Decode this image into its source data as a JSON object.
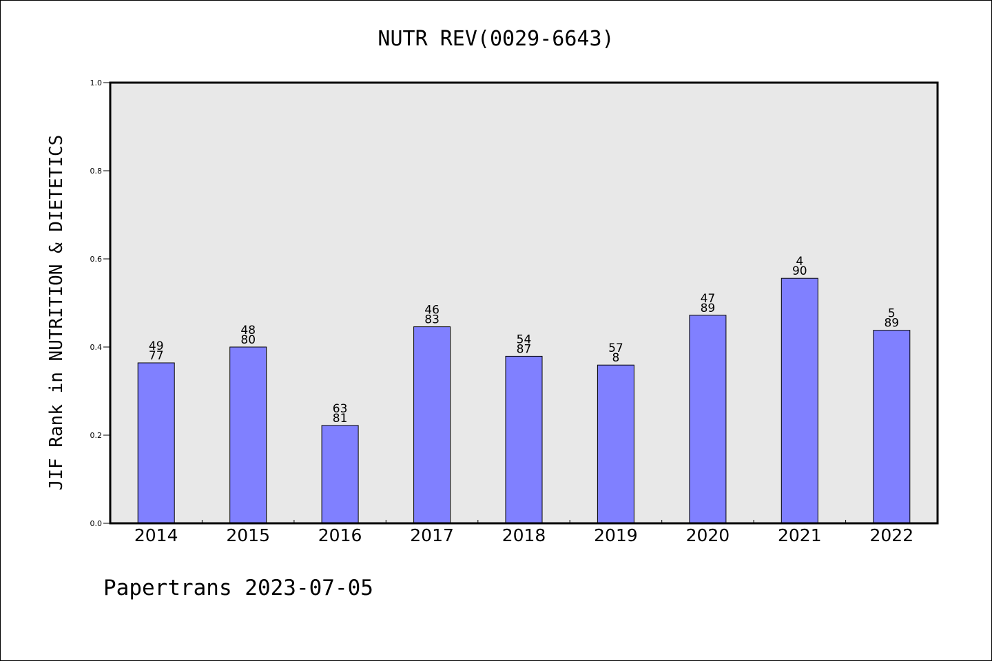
{
  "chart_data": {
    "type": "bar",
    "title": "NUTR REV(0029-6643)",
    "ylabel": "JIF Rank in NUTRITION & DIETETICS",
    "xlabel": "",
    "ylim": [
      0,
      1.0
    ],
    "yticks": [
      "0.0",
      "0.2",
      "0.4",
      "0.6",
      "0.8",
      "1.0"
    ],
    "ytick_values": [
      0,
      0.2,
      0.4,
      0.6,
      0.8,
      1.0
    ],
    "grid": false,
    "bar_color": "#8080ff",
    "plot_bg": "#e8e8e8",
    "categories": [
      "2014",
      "2015",
      "2016",
      "2017",
      "2018",
      "2019",
      "2020",
      "2021",
      "2022"
    ],
    "values": [
      0.364,
      0.4,
      0.222,
      0.446,
      0.379,
      0.359,
      0.472,
      0.556,
      0.438
    ],
    "label_top": [
      "49",
      "48",
      "63",
      "46",
      "54",
      "57",
      "47",
      "4",
      "5"
    ],
    "label_bottom": [
      "77",
      "80",
      "81",
      "83",
      "87",
      "8",
      "89",
      "90",
      "89"
    ],
    "footer": "Papertrans 2023-07-05"
  }
}
